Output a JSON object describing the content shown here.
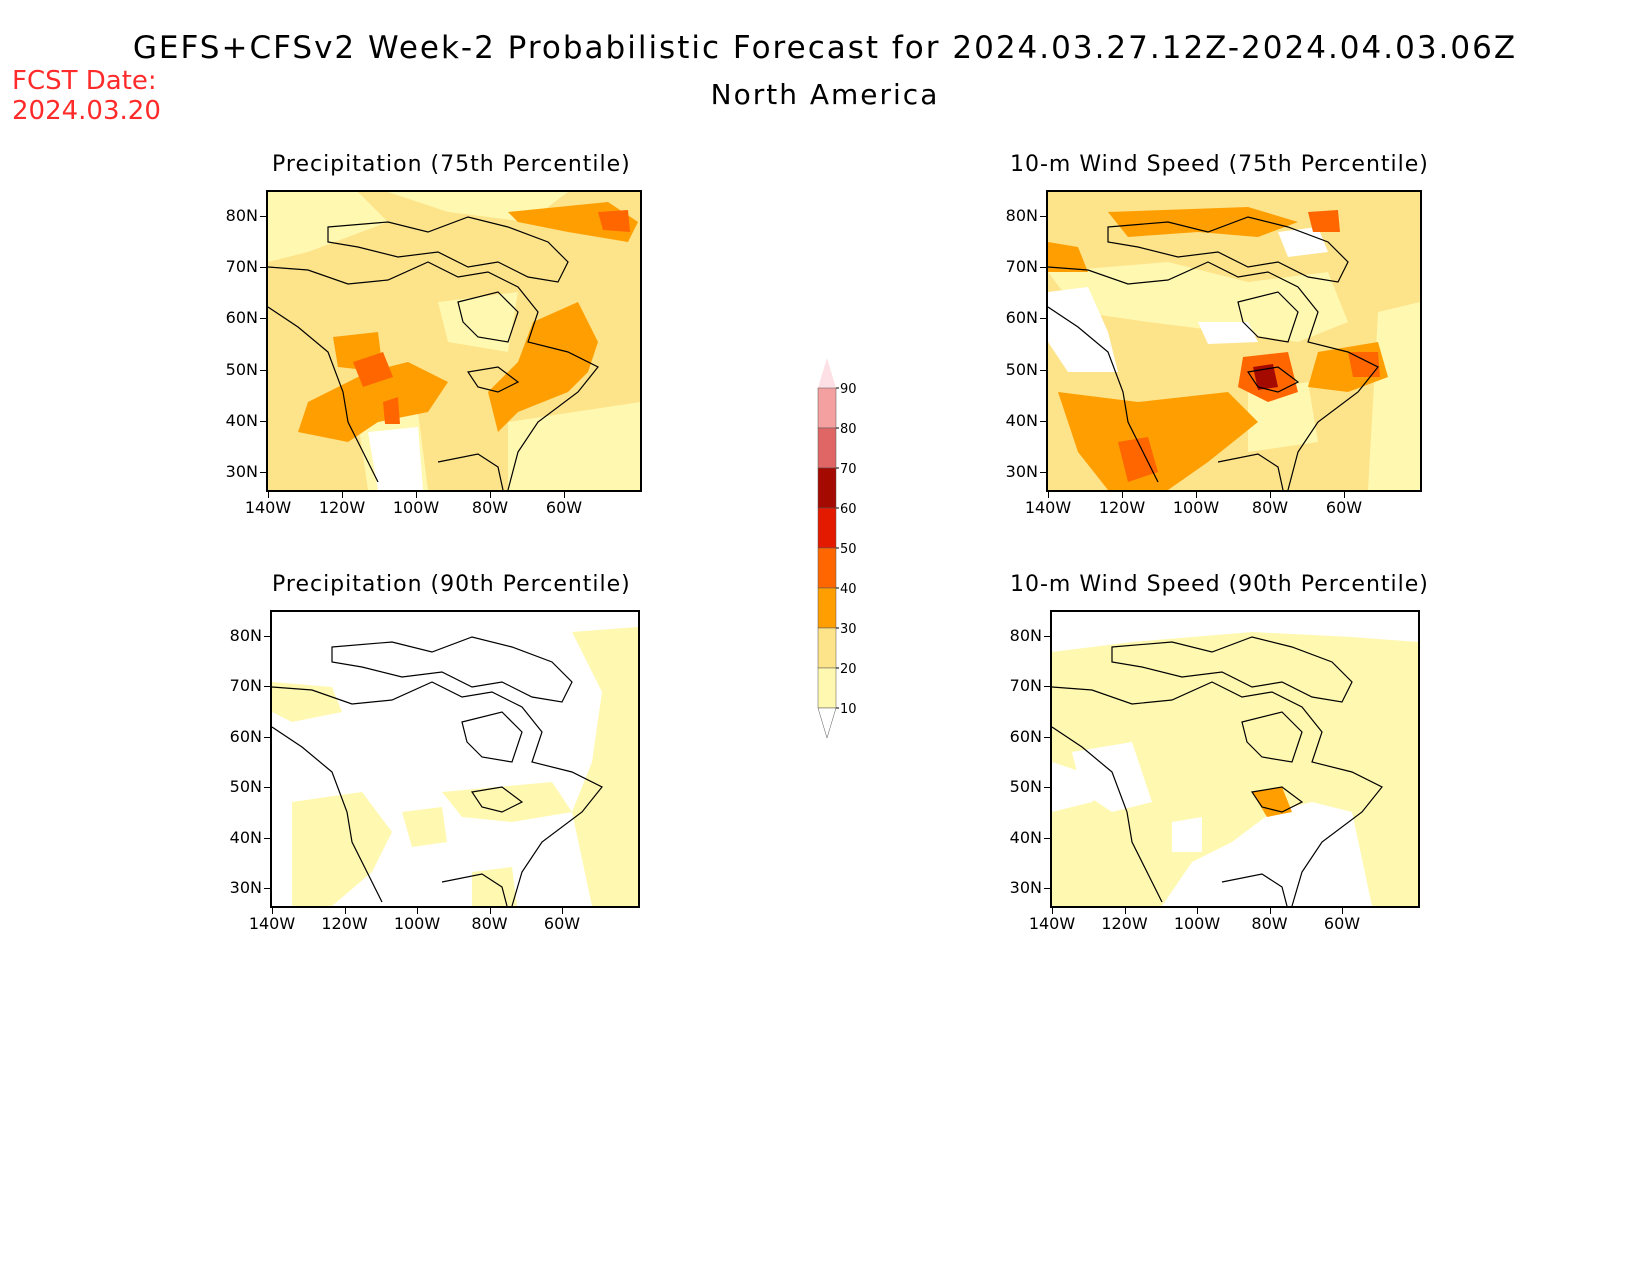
{
  "header": {
    "title": "GEFS+CFSv2 Week-2 Probabilistic Forecast for 2024.03.27.12Z-2024.04.03.06Z",
    "subtitle": "North America",
    "fcst_label": "FCST Date:",
    "fcst_date": "2024.03.20"
  },
  "axes": {
    "lat_labels": [
      "80N",
      "70N",
      "60N",
      "50N",
      "40N",
      "30N"
    ],
    "lon_labels": [
      "140W",
      "120W",
      "100W",
      "80W",
      "60W"
    ]
  },
  "panels": [
    {
      "id": "precip75",
      "title": "Precipitation (75th Percentile)",
      "background": "#fde38a"
    },
    {
      "id": "wind75",
      "title": "10-m Wind Speed (75th Percentile)",
      "background": "#fde38a"
    },
    {
      "id": "precip90",
      "title": "Precipitation (90th Percentile)",
      "background": "#ffffff"
    },
    {
      "id": "wind90",
      "title": "10-m Wind Speed (90th Percentile)",
      "background": "#ffffff"
    }
  ],
  "colorbar": {
    "levels": [
      "10",
      "20",
      "30",
      "40",
      "50",
      "60",
      "70",
      "80",
      "90"
    ],
    "colors": [
      "#fff8b0",
      "#fde38a",
      "#ff9e00",
      "#ff6600",
      "#e31a00",
      "#a50a00",
      "#e06666",
      "#f4a0a0",
      "#fde0e6"
    ]
  },
  "colors": {
    "title": "#000000",
    "fcst_date": "#ff2a2a",
    "coast": "#000000"
  }
}
